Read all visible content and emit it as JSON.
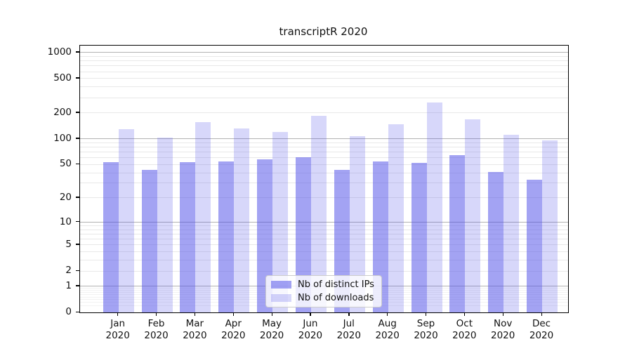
{
  "chart_data": {
    "type": "bar",
    "title": "transcriptR 2020",
    "categories": [
      "Jan",
      "Feb",
      "Mar",
      "Apr",
      "May",
      "Jun",
      "Jul",
      "Aug",
      "Sep",
      "Oct",
      "Nov",
      "Dec"
    ],
    "x_tick_second_line": "2020",
    "series": [
      {
        "name": "Nb of distinct IPs",
        "color": "rgba(72,72,232,0.50)",
        "color_hex_approx": "#a4a4f4",
        "values": [
          53,
          43,
          53,
          54,
          58,
          61,
          43,
          54,
          52,
          65,
          41,
          33
        ]
      },
      {
        "name": "Nb of downloads",
        "color": "rgba(72,72,232,0.22)",
        "color_hex_approx": "#d7d7fa",
        "values": [
          130,
          104,
          155,
          131,
          120,
          185,
          108,
          148,
          265,
          168,
          112,
          95
        ]
      }
    ],
    "y_ticks": [
      1000,
      500,
      200,
      100,
      50,
      20,
      10,
      5,
      2,
      1,
      0
    ],
    "y_scale": "log1p",
    "ylim": [
      0,
      1200
    ],
    "xlabel": "",
    "ylabel": "",
    "grid": true,
    "legend_position": "lower-center-left-of-middle",
    "grid_major_color": "#b2b2b2",
    "grid_minor_color": "#e8e8e8",
    "axis_color": "#000000",
    "text_color": "#111111"
  }
}
